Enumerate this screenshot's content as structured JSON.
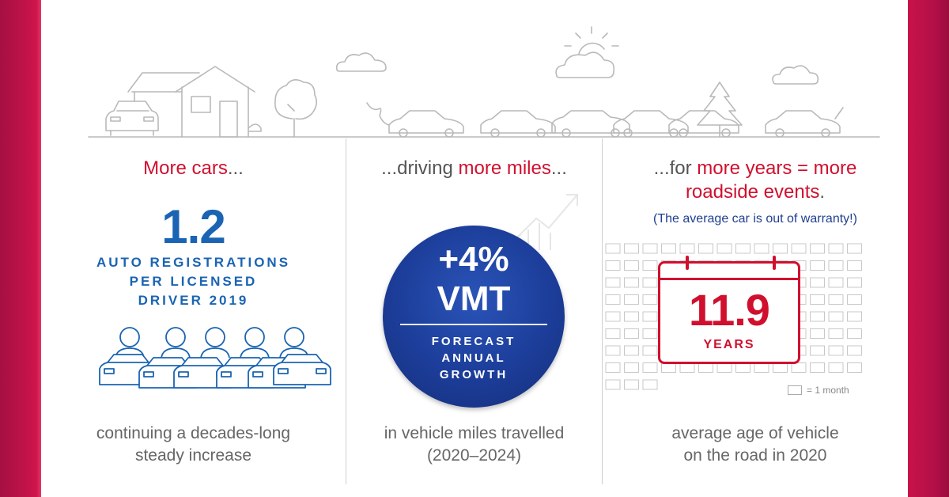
{
  "col1": {
    "head_red": "More cars",
    "head_rest": "...",
    "stat": "1.2",
    "stat_lines": [
      "AUTO REGISTRATIONS",
      "PER LICENSED",
      "DRIVER 2019"
    ],
    "bottom_lines": [
      "continuing a decades-long",
      "steady increase"
    ]
  },
  "col2": {
    "head_pre": "...driving ",
    "head_red": "more miles",
    "head_post": "...",
    "stat_big": "+4%",
    "stat_mid": "VMT",
    "stat_lines": [
      "FORECAST",
      "ANNUAL",
      "GROWTH"
    ],
    "bottom_lines": [
      "in vehicle miles travelled",
      "(2020–2024)"
    ]
  },
  "col3": {
    "head_pre": "...for ",
    "head_red1": "more years = more",
    "head_red2": "roadside events",
    "head_post": ".",
    "paren": "(The average car is out of warranty!)",
    "cal_value": "11.9",
    "cal_unit": "YEARS",
    "legend": "= 1 month",
    "bottom_lines": [
      "average age of vehicle",
      "on the road in 2020"
    ]
  },
  "colors": {
    "accent_red": "#d0102e",
    "brand_blue": "#1a64b3",
    "circle_blue": "#1c3d99",
    "side_magenta": "#c4134a"
  },
  "icons": [
    "house-icon",
    "car-icon",
    "tree-icon",
    "cloud-icon",
    "sun-icon",
    "person-icon",
    "calendar-icon",
    "growth-arrow-icon"
  ]
}
